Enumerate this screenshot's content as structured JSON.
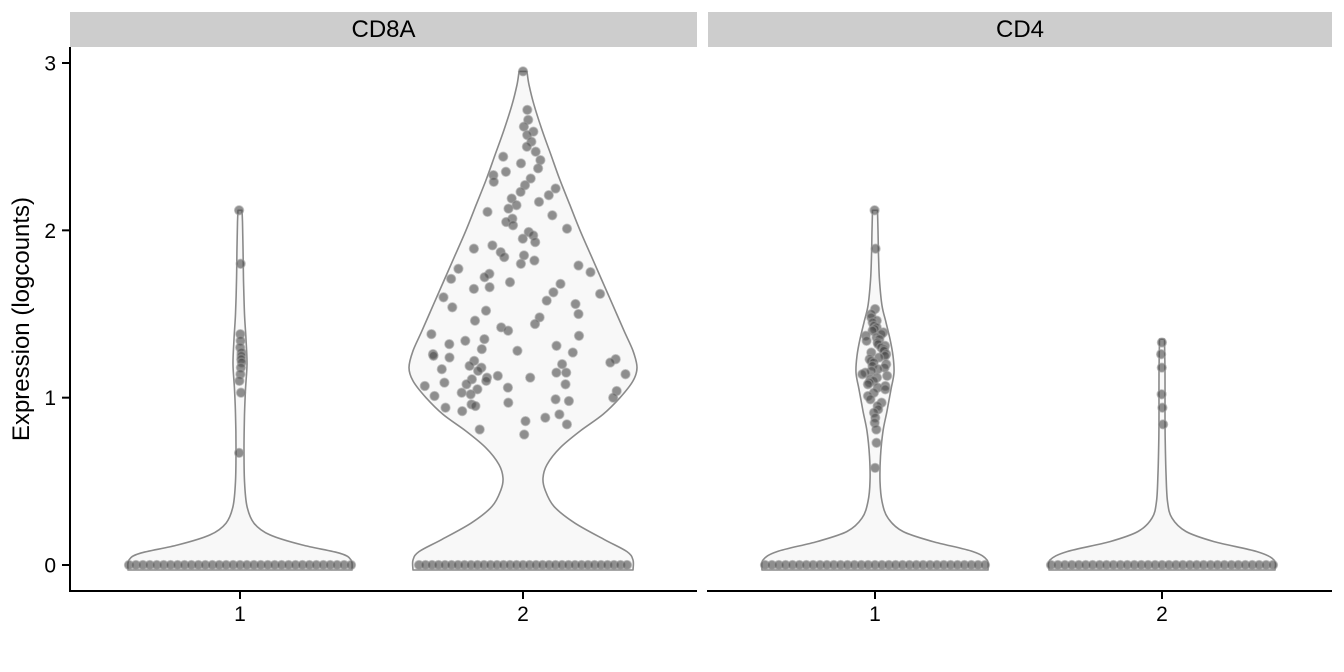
{
  "chart_data": {
    "type": "violin",
    "title": "",
    "ylabel": "Expression (logcounts)",
    "ylim": [
      0,
      3
    ],
    "yticks": [
      "0",
      "1",
      "2",
      "3"
    ],
    "grid": "off",
    "legend": "none",
    "facets": [
      {
        "label": "CD8A",
        "groups": [
          {
            "x_label": "1",
            "nonzero_values": [
              2.12,
              1.8,
              1.38,
              1.34,
              1.3,
              1.27,
              1.25,
              1.23,
              1.21,
              1.18,
              1.14,
              1.1,
              1.03,
              0.67
            ],
            "zeros": {
              "count": 33,
              "half_span": 116
            },
            "violin_profile": [
              [
                0.0,
                112
              ],
              [
                0.03,
                111
              ],
              [
                0.07,
                100
              ],
              [
                0.12,
                62
              ],
              [
                0.18,
                30
              ],
              [
                0.25,
                14
              ],
              [
                0.35,
                7
              ],
              [
                0.5,
                4.5
              ],
              [
                0.7,
                4
              ],
              [
                0.9,
                4.5
              ],
              [
                1.05,
                5.5
              ],
              [
                1.2,
                7
              ],
              [
                1.35,
                6
              ],
              [
                1.5,
                4.5
              ],
              [
                1.7,
                3.5
              ],
              [
                1.9,
                3
              ],
              [
                2.05,
                2.5
              ],
              [
                2.12,
                2
              ]
            ]
          },
          {
            "x_label": "2",
            "nonzero_values": [
              2.95,
              2.72,
              2.66,
              2.62,
              2.59,
              2.57,
              2.53,
              2.5,
              2.47,
              2.44,
              2.42,
              2.4,
              2.37,
              2.35,
              2.33,
              2.31,
              2.29,
              2.27,
              2.25,
              2.23,
              2.21,
              2.19,
              2.17,
              2.15,
              2.13,
              2.11,
              2.09,
              2.07,
              2.05,
              2.03,
              2.01,
              1.99,
              1.97,
              1.95,
              1.93,
              1.91,
              1.89,
              1.87,
              1.85,
              1.84,
              1.82,
              1.8,
              1.79,
              1.77,
              1.75,
              1.74,
              1.72,
              1.71,
              1.69,
              1.68,
              1.66,
              1.65,
              1.63,
              1.62,
              1.6,
              1.58,
              1.56,
              1.54,
              1.52,
              1.5,
              1.48,
              1.46,
              1.44,
              1.42,
              1.4,
              1.38,
              1.37,
              1.35,
              1.34,
              1.32,
              1.31,
              1.29,
              1.28,
              1.27,
              1.26,
              1.25,
              1.24,
              1.23,
              1.22,
              1.21,
              1.2,
              1.19,
              1.18,
              1.17,
              1.16,
              1.15,
              1.15,
              1.14,
              1.13,
              1.12,
              1.12,
              1.11,
              1.1,
              1.09,
              1.08,
              1.08,
              1.07,
              1.06,
              1.05,
              1.04,
              1.03,
              1.02,
              1.01,
              1.0,
              0.99,
              0.98,
              0.97,
              0.96,
              0.95,
              0.94,
              0.92,
              0.9,
              0.88,
              0.86,
              0.84,
              0.81,
              0.78
            ],
            "zeros": {
              "count": 33,
              "half_span": 109
            },
            "violin_profile": [
              [
                0.0,
                110
              ],
              [
                0.03,
                110
              ],
              [
                0.08,
                104
              ],
              [
                0.15,
                82
              ],
              [
                0.25,
                52
              ],
              [
                0.35,
                31
              ],
              [
                0.45,
                22
              ],
              [
                0.52,
                20
              ],
              [
                0.6,
                24
              ],
              [
                0.7,
                37
              ],
              [
                0.8,
                57
              ],
              [
                0.9,
                80
              ],
              [
                1.0,
                97
              ],
              [
                1.1,
                110
              ],
              [
                1.18,
                114
              ],
              [
                1.28,
                110
              ],
              [
                1.4,
                101
              ],
              [
                1.55,
                90
              ],
              [
                1.7,
                79
              ],
              [
                1.85,
                68
              ],
              [
                2.0,
                57
              ],
              [
                2.15,
                47
              ],
              [
                2.3,
                37
              ],
              [
                2.45,
                28
              ],
              [
                2.6,
                19
              ],
              [
                2.75,
                11
              ],
              [
                2.87,
                6
              ],
              [
                2.95,
                4
              ]
            ]
          }
        ]
      },
      {
        "label": "CD4",
        "groups": [
          {
            "x_label": "1",
            "nonzero_values": [
              2.12,
              1.89,
              1.53,
              1.5,
              1.48,
              1.46,
              1.45,
              1.43,
              1.42,
              1.41,
              1.4,
              1.39,
              1.38,
              1.37,
              1.36,
              1.35,
              1.34,
              1.33,
              1.32,
              1.31,
              1.3,
              1.29,
              1.28,
              1.27,
              1.26,
              1.25,
              1.24,
              1.23,
              1.22,
              1.21,
              1.2,
              1.19,
              1.18,
              1.17,
              1.16,
              1.15,
              1.14,
              1.13,
              1.12,
              1.11,
              1.1,
              1.09,
              1.08,
              1.07,
              1.06,
              1.05,
              1.03,
              1.01,
              0.99,
              0.97,
              0.95,
              0.93,
              0.91,
              0.88,
              0.85,
              0.81,
              0.73,
              0.58
            ],
            "zeros": {
              "count": 33,
              "half_span": 115
            },
            "violin_profile": [
              [
                0.0,
                113
              ],
              [
                0.03,
                112
              ],
              [
                0.08,
                98
              ],
              [
                0.14,
                58
              ],
              [
                0.2,
                28
              ],
              [
                0.28,
                13
              ],
              [
                0.38,
                7
              ],
              [
                0.5,
                5
              ],
              [
                0.65,
                5.5
              ],
              [
                0.8,
                8
              ],
              [
                0.92,
                12
              ],
              [
                1.05,
                16
              ],
              [
                1.15,
                19
              ],
              [
                1.25,
                18
              ],
              [
                1.35,
                15
              ],
              [
                1.45,
                11
              ],
              [
                1.55,
                7
              ],
              [
                1.7,
                4.5
              ],
              [
                1.85,
                3.5
              ],
              [
                2.0,
                3
              ],
              [
                2.12,
                2.5
              ]
            ]
          },
          {
            "x_label": "2",
            "nonzero_values": [
              1.33,
              1.26,
              1.18,
              1.02,
              0.94,
              0.84
            ],
            "zeros": {
              "count": 33,
              "half_span": 116
            },
            "violin_profile": [
              [
                0.0,
                113
              ],
              [
                0.03,
                112
              ],
              [
                0.08,
                95
              ],
              [
                0.14,
                52
              ],
              [
                0.2,
                24
              ],
              [
                0.28,
                10
              ],
              [
                0.38,
                5.5
              ],
              [
                0.55,
                4
              ],
              [
                0.75,
                3.2
              ],
              [
                0.95,
                3
              ],
              [
                1.15,
                3
              ],
              [
                1.35,
                2.5
              ]
            ]
          }
        ]
      }
    ],
    "style": {
      "strip_bg": "#cdcdcd",
      "violin_stroke": "#8a8a8a",
      "violin_fill": "#f8f8f8",
      "point_fill": "#4d4d4d",
      "point_stroke": "#9a9a9a",
      "axis_color": "#000000",
      "text_color": "#000000"
    }
  }
}
